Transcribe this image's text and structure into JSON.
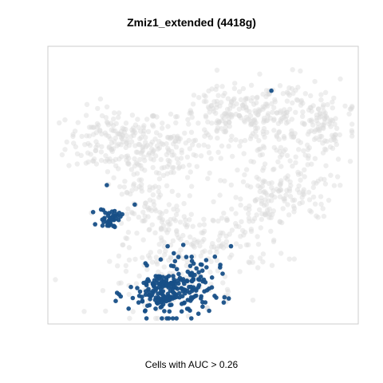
{
  "chart_data": {
    "type": "scatter",
    "title": "Zmiz1_extended (4418g)",
    "caption": "Cells with AUC > 0.26",
    "xlabel": "",
    "ylabel": "",
    "grid": false,
    "axes_visible": false,
    "xlim": [
      0,
      100
    ],
    "ylim": [
      0,
      100
    ],
    "colors": {
      "background_cells": "#d9d9d9",
      "highlighted_cells": "#174f87",
      "panel_border": "#cccccc"
    },
    "series": [
      {
        "role": "all-cells",
        "clusters": [
          {
            "cx": 22,
            "cy": 66,
            "sx": 8,
            "sy": 6,
            "n": 170
          },
          {
            "cx": 40,
            "cy": 62,
            "sx": 7,
            "sy": 6,
            "n": 110
          },
          {
            "cx": 58,
            "cy": 75,
            "sx": 8,
            "sy": 5,
            "n": 140
          },
          {
            "cx": 76,
            "cy": 72,
            "sx": 9,
            "sy": 8,
            "n": 180
          },
          {
            "cx": 90,
            "cy": 72,
            "sx": 5,
            "sy": 7,
            "n": 70
          },
          {
            "cx": 70,
            "cy": 45,
            "sx": 5,
            "sy": 6,
            "n": 80
          },
          {
            "cx": 80,
            "cy": 48,
            "sx": 6,
            "sy": 5,
            "n": 60
          },
          {
            "cx": 52,
            "cy": 30,
            "sx": 12,
            "sy": 7,
            "n": 140
          },
          {
            "cx": 35,
            "cy": 38,
            "sx": 7,
            "sy": 5,
            "n": 50
          },
          {
            "cx": 40,
            "cy": 15,
            "sx": 10,
            "sy": 6,
            "n": 100
          },
          {
            "cx": 30,
            "cy": 48,
            "sx": 5,
            "sy": 4,
            "n": 40
          }
        ]
      },
      {
        "role": "auc-positive-cells",
        "clusters": [
          {
            "cx": 39,
            "cy": 11,
            "sx": 6.5,
            "sy": 4.5,
            "n": 210
          },
          {
            "cx": 46,
            "cy": 18,
            "sx": 5,
            "sy": 4,
            "n": 40
          },
          {
            "cx": 20,
            "cy": 38,
            "sx": 1.8,
            "sy": 1.8,
            "n": 40
          }
        ],
        "points": [
          [
            19,
            50
          ],
          [
            28,
            43
          ],
          [
            59,
            28
          ],
          [
            72,
            84
          ],
          [
            51,
            23
          ],
          [
            23,
            40
          ]
        ]
      }
    ]
  }
}
